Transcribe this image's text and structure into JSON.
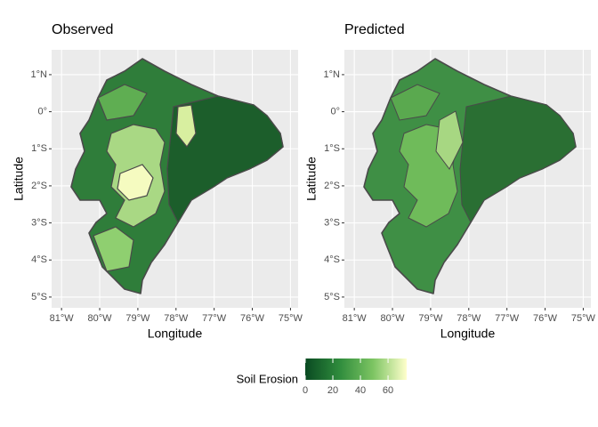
{
  "chart_data": [
    {
      "type": "map",
      "title": "Observed",
      "xlabel": "Longitude",
      "ylabel": "Latitude",
      "xlim": [
        -81.26,
        -74.8
      ],
      "ylim": [
        -5.29,
        1.67
      ],
      "xticks": [
        {
          "value": -81,
          "label": "81°W"
        },
        {
          "value": -80,
          "label": "80°W"
        },
        {
          "value": -79,
          "label": "79°W"
        },
        {
          "value": -78,
          "label": "78°W"
        },
        {
          "value": -77,
          "label": "77°W"
        },
        {
          "value": -76,
          "label": "76°W"
        },
        {
          "value": -75,
          "label": "75°W"
        }
      ],
      "yticks": [
        {
          "value": 1,
          "label": "1°N"
        },
        {
          "value": 0,
          "label": "0°"
        },
        {
          "value": -1,
          "label": "1°S"
        },
        {
          "value": -2,
          "label": "2°S"
        },
        {
          "value": -3,
          "label": "3°S"
        },
        {
          "value": -4,
          "label": "4°S"
        },
        {
          "value": -5,
          "label": "5°S"
        }
      ]
    },
    {
      "type": "map",
      "title": "Predicted",
      "xlabel": "Longitude",
      "ylabel": "Latitude",
      "xlim": [
        -81.26,
        -74.8
      ],
      "ylim": [
        -5.29,
        1.67
      ],
      "xticks": [
        {
          "value": -81,
          "label": "81°W"
        },
        {
          "value": -80,
          "label": "80°W"
        },
        {
          "value": -79,
          "label": "79°W"
        },
        {
          "value": -78,
          "label": "78°W"
        },
        {
          "value": -77,
          "label": "77°W"
        },
        {
          "value": -76,
          "label": "76°W"
        },
        {
          "value": -75,
          "label": "75°W"
        }
      ],
      "yticks": [
        {
          "value": 1,
          "label": "1°N"
        },
        {
          "value": 0,
          "label": "0°"
        },
        {
          "value": -1,
          "label": "1°S"
        },
        {
          "value": -2,
          "label": "2°S"
        },
        {
          "value": -3,
          "label": "3°S"
        },
        {
          "value": -4,
          "label": "4°S"
        },
        {
          "value": -5,
          "label": "5°S"
        }
      ]
    }
  ],
  "colorbar": {
    "title": "Soil Erosion",
    "lim": [
      0,
      73.5
    ],
    "ticks": [
      0,
      20,
      40,
      60
    ],
    "colors": [
      "#0a4a22",
      "#2e8b3c",
      "#7cc462",
      "#ffffcc"
    ]
  }
}
